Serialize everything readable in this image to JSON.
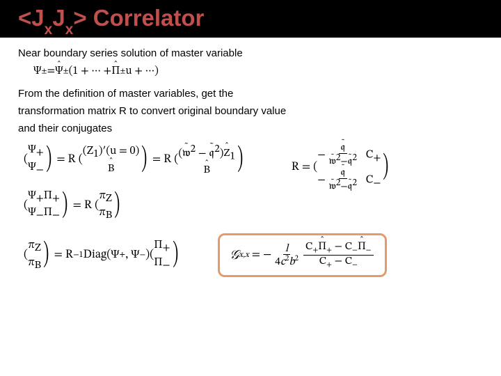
{
  "title": {
    "prefix": "<J",
    "sub1": "x",
    "mid": "J",
    "sub2": "x",
    "suffix": "> Correlator",
    "color": "#c0504d"
  },
  "text": {
    "line1": "Near boundary series solution of master variable",
    "line2a": "From the definition of master variables, get the",
    "line2b": "transformation matrix R to convert original boundary value",
    "line2c": "and their conjugates"
  },
  "box": {
    "border_color": "#e49b68"
  },
  "eq": {
    "series_lhs_a": "Ψ",
    "series_lhs_b": "Ψ̂",
    "series_pm": "±",
    "series_mid1": "(1 + ··· +",
    "series_pi": "Π̂",
    "series_mid2": "u + ···)",
    "psi_plus": "Ψ₊",
    "psi_minus": "Ψ₋",
    "R": "R",
    "Z1p": "(Z₁)′(u = 0)",
    "Bhat": "B̂",
    "w2q2": "(𝑤̃² − 𝑞̃²)",
    "Z1hat": "Ẑ₁",
    "R_matrix_r1c1_num": "𝑞̃",
    "R_matrix_r1c1_den": "𝑤̃² − 𝑞̃²",
    "R_matrix_r1c2": "C₊",
    "R_matrix_r2c1_num": "𝑞̃",
    "R_matrix_r2c1_den": "𝑤̃² − 𝑞̃²",
    "R_matrix_r2c2": "C₋",
    "psi_pi_plus": "Ψ₊Π₊",
    "psi_pi_minus": "Ψ₋Π₋",
    "piZ": "π_Z",
    "piB": "π_B",
    "Rinv": "R⁻¹",
    "Diag": "Diag(Ψ₊, Ψ₋)",
    "pi_plus": "Π₊",
    "pi_minus": "Π₋",
    "Gxx": "𝒢",
    "Gxx_sub": "x,x",
    "final_lead_num": "l",
    "final_lead_den": "4c²b²",
    "final_num_a": "C₊Π̂₊ − C₋Π̂₋",
    "final_den_a": "C₊ − C₋"
  }
}
